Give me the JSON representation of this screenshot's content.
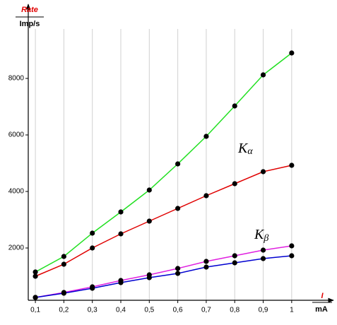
{
  "chart_data": {
    "type": "line",
    "y_label": "Rate",
    "y_unit": "Imp/s",
    "x_label": "I",
    "x_unit": "mA",
    "x": [
      0.1,
      0.2,
      0.3,
      0.4,
      0.5,
      0.6,
      0.7,
      0.8,
      0.9,
      1
    ],
    "xlim": [
      0.075,
      1.05
    ],
    "xticks": [
      {
        "value": 0.1,
        "label": "0,1"
      },
      {
        "value": 0.2,
        "label": "0,2"
      },
      {
        "value": 0.3,
        "label": "0,3"
      },
      {
        "value": 0.4,
        "label": "0,4"
      },
      {
        "value": 0.5,
        "label": "0,5"
      },
      {
        "value": 0.6,
        "label": "0,6"
      },
      {
        "value": 0.7,
        "label": "0,7"
      },
      {
        "value": 0.8,
        "label": "0,8"
      },
      {
        "value": 0.9,
        "label": "0,9"
      },
      1
    ],
    "ylim": [
      150,
      9750
    ],
    "yticks": [
      2000,
      4000,
      6000,
      8000
    ],
    "grid": true,
    "marker_color": "#000000",
    "series": [
      {
        "color": "#22e022",
        "values": [
          1150,
          1700,
          2525,
          3275,
          4050,
          4975,
          5950,
          7025,
          8125,
          8900
        ]
      },
      {
        "color": "#e00000",
        "values": [
          1000,
          1425,
          2000,
          2500,
          2950,
          3400,
          3850,
          4275,
          4700,
          4925
        ]
      },
      {
        "color": "#e020e0",
        "values": [
          250,
          425,
          625,
          850,
          1050,
          1275,
          1525,
          1725,
          1925,
          2075
        ]
      },
      {
        "color": "#0000d0",
        "values": [
          250,
          400,
          575,
          775,
          950,
          1100,
          1325,
          1475,
          1625,
          1725
        ]
      }
    ],
    "annotations": [
      {
        "text": "K",
        "sub": "α"
      },
      {
        "text": "K",
        "sub": "β"
      }
    ]
  }
}
